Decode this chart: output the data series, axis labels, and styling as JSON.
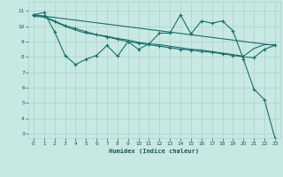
{
  "xlabel": "Humidex (Indice chaleur)",
  "background_color": "#c8e8e4",
  "grid_color": "#b0d0cc",
  "line_color": "#1a6e6a",
  "xlim": [
    -0.5,
    23.5
  ],
  "ylim": [
    2.7,
    11.6
  ],
  "yticks": [
    3,
    4,
    5,
    6,
    7,
    8,
    9,
    10,
    11
  ],
  "xticks": [
    0,
    1,
    2,
    3,
    4,
    5,
    6,
    7,
    8,
    9,
    10,
    11,
    12,
    13,
    14,
    15,
    16,
    17,
    18,
    19,
    20,
    21,
    22,
    23
  ],
  "series1_x": [
    0,
    1,
    2,
    3,
    4,
    5,
    6,
    7,
    8,
    9,
    10,
    11,
    12,
    13,
    14,
    15,
    16,
    17,
    18,
    19,
    20,
    21,
    22,
    23
  ],
  "series1_y": [
    10.75,
    10.9,
    9.65,
    8.1,
    7.5,
    7.85,
    8.1,
    8.75,
    8.05,
    9.0,
    8.5,
    8.85,
    9.55,
    9.55,
    10.75,
    9.5,
    10.35,
    10.2,
    10.35,
    9.7,
    7.85,
    5.9,
    5.2,
    2.7
  ],
  "series2_x": [
    0,
    1,
    2,
    3,
    4,
    5,
    6,
    7,
    8,
    9,
    10,
    11,
    12,
    13,
    14,
    15,
    16,
    17,
    18,
    19,
    20,
    21,
    22,
    23
  ],
  "series2_y": [
    10.75,
    10.65,
    10.35,
    10.05,
    9.85,
    9.65,
    9.45,
    9.3,
    9.15,
    9.0,
    8.9,
    8.8,
    8.7,
    8.6,
    8.5,
    8.45,
    8.35,
    8.3,
    8.2,
    8.1,
    8.0,
    7.95,
    8.5,
    8.75
  ],
  "series3_x": [
    0,
    23
  ],
  "series3_y": [
    10.75,
    8.75
  ],
  "series4_x": [
    0,
    1,
    2,
    3,
    4,
    5,
    6,
    7,
    8,
    9,
    10,
    11,
    12,
    13,
    14,
    15,
    16,
    17,
    18,
    19,
    20,
    21,
    22,
    23
  ],
  "series4_y": [
    10.65,
    10.6,
    10.3,
    10.0,
    9.75,
    9.55,
    9.45,
    9.35,
    9.2,
    9.1,
    8.95,
    8.85,
    8.8,
    8.7,
    8.6,
    8.5,
    8.45,
    8.35,
    8.25,
    8.15,
    8.05,
    8.55,
    8.8,
    8.8
  ]
}
